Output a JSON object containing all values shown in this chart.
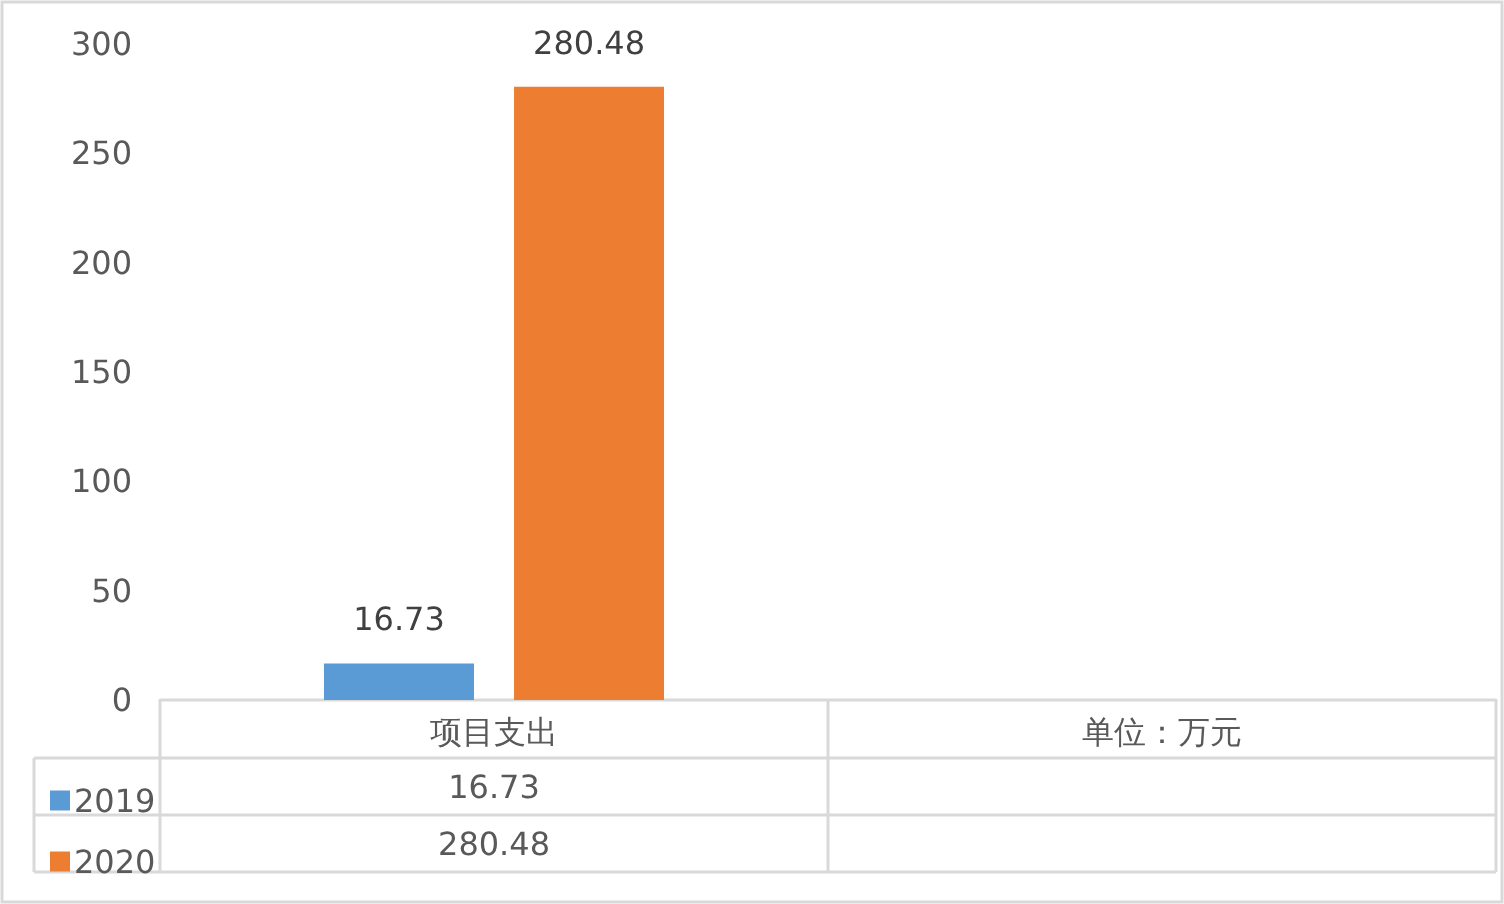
{
  "chart_data": {
    "type": "bar",
    "categories": [
      "项目支出",
      "单位：万元"
    ],
    "series": [
      {
        "name": "2019",
        "color": "#5b9bd5",
        "values": [
          16.73,
          null
        ],
        "value_labels": [
          "16.73",
          null
        ]
      },
      {
        "name": "2020",
        "color": "#ed7d31",
        "values": [
          280.48,
          null
        ],
        "value_labels": [
          "280.48",
          null
        ]
      }
    ],
    "ylim": [
      0,
      300
    ],
    "yticks": [
      0,
      50,
      100,
      150,
      200,
      250,
      300
    ],
    "grid": false,
    "legend": "bottom left"
  }
}
